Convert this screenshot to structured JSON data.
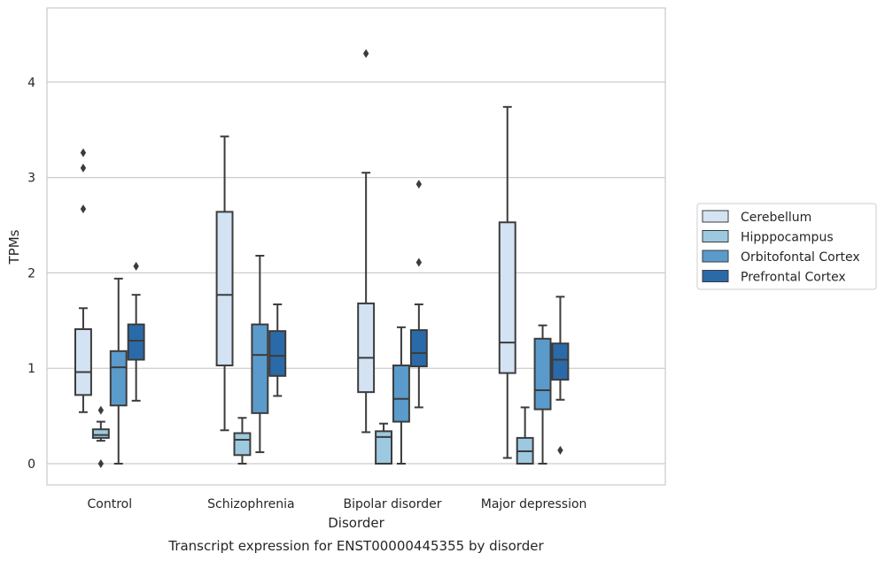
{
  "chart_data": {
    "type": "box",
    "title": "Transcript expression for ENST00000445355 by disorder",
    "xlabel": "Disorder",
    "ylabel": "TPMs",
    "ylim": [
      -0.22,
      4.8
    ],
    "yticks": [
      0,
      1,
      2,
      3,
      4
    ],
    "grid": "horizontal",
    "legend_position": "right",
    "categories": [
      "Control",
      "Schizophrenia",
      "Bipolar disorder",
      "Major depression"
    ],
    "series": [
      {
        "name": "Cerebellum",
        "color": "#d3e3f3",
        "boxes": [
          {
            "whislo": 0.54,
            "q1": 0.72,
            "med": 0.96,
            "q3": 1.41,
            "whishi": 1.63,
            "fliers": [
              2.67,
              3.1,
              3.26
            ]
          },
          {
            "whislo": 0.35,
            "q1": 1.03,
            "med": 1.77,
            "q3": 2.64,
            "whishi": 3.43,
            "fliers": []
          },
          {
            "whislo": 0.33,
            "q1": 0.75,
            "med": 1.11,
            "q3": 1.68,
            "whishi": 3.05,
            "fliers": [
              4.3
            ]
          },
          {
            "whislo": 0.06,
            "q1": 0.95,
            "med": 1.27,
            "q3": 2.53,
            "whishi": 3.74,
            "fliers": []
          }
        ]
      },
      {
        "name": "Hipppocampus",
        "color": "#9dc9e0",
        "boxes": [
          {
            "whislo": 0.24,
            "q1": 0.27,
            "med": 0.3,
            "q3": 0.36,
            "whishi": 0.44,
            "fliers": [
              0.0,
              0.56
            ]
          },
          {
            "whislo": 0.0,
            "q1": 0.09,
            "med": 0.25,
            "q3": 0.32,
            "whishi": 0.48,
            "fliers": []
          },
          {
            "whislo": 0.0,
            "q1": 0.0,
            "med": 0.28,
            "q3": 0.34,
            "whishi": 0.42,
            "fliers": []
          },
          {
            "whislo": 0.0,
            "q1": 0.0,
            "med": 0.13,
            "q3": 0.27,
            "whishi": 0.59,
            "fliers": []
          }
        ]
      },
      {
        "name": "Orbitofontal Cortex",
        "color": "#5b9bcb",
        "boxes": [
          {
            "whislo": 0.0,
            "q1": 0.61,
            "med": 1.01,
            "q3": 1.18,
            "whishi": 1.94,
            "fliers": []
          },
          {
            "whislo": 0.12,
            "q1": 0.53,
            "med": 1.14,
            "q3": 1.46,
            "whishi": 2.18,
            "fliers": []
          },
          {
            "whislo": 0.0,
            "q1": 0.44,
            "med": 0.68,
            "q3": 1.03,
            "whishi": 1.43,
            "fliers": []
          },
          {
            "whislo": 0.0,
            "q1": 0.57,
            "med": 0.77,
            "q3": 1.31,
            "whishi": 1.45,
            "fliers": []
          }
        ]
      },
      {
        "name": "Prefrontal Cortex",
        "color": "#2b6aa8",
        "boxes": [
          {
            "whislo": 0.66,
            "q1": 1.09,
            "med": 1.29,
            "q3": 1.46,
            "whishi": 1.77,
            "fliers": [
              2.07
            ]
          },
          {
            "whislo": 0.71,
            "q1": 0.92,
            "med": 1.13,
            "q3": 1.39,
            "whishi": 1.67,
            "fliers": []
          },
          {
            "whislo": 0.59,
            "q1": 1.02,
            "med": 1.16,
            "q3": 1.4,
            "whishi": 1.67,
            "fliers": [
              2.11,
              2.93
            ]
          },
          {
            "whislo": 0.67,
            "q1": 0.88,
            "med": 1.09,
            "q3": 1.26,
            "whishi": 1.75,
            "fliers": [
              0.14
            ]
          }
        ]
      }
    ]
  }
}
